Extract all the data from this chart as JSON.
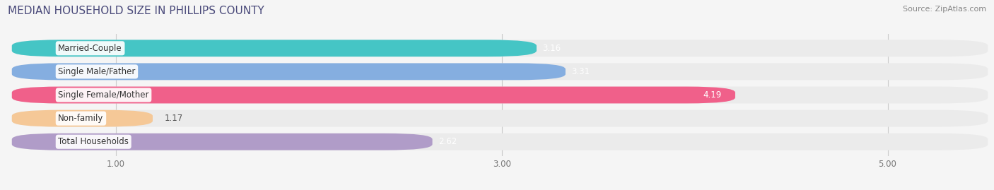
{
  "title": "MEDIAN HOUSEHOLD SIZE IN PHILLIPS COUNTY",
  "source": "Source: ZipAtlas.com",
  "categories": [
    "Married-Couple",
    "Single Male/Father",
    "Single Female/Mother",
    "Non-family",
    "Total Households"
  ],
  "values": [
    3.16,
    3.31,
    4.19,
    1.17,
    2.62
  ],
  "colors": [
    "#45c5c5",
    "#85aee0",
    "#f0608a",
    "#f5c897",
    "#b09cc8"
  ],
  "xlim": [
    0.0,
    5.5
  ],
  "xmin": 1.0,
  "xticks": [
    1.0,
    3.0,
    5.0
  ],
  "xtick_labels": [
    "1.00",
    "3.00",
    "5.00"
  ],
  "bar_height": 0.68,
  "label_fontsize": 8.5,
  "value_fontsize": 8.5,
  "title_fontsize": 11,
  "source_fontsize": 8,
  "background_color": "#f5f5f5",
  "bar_bg_color": "#ebebeb",
  "title_color": "#4a4a7a",
  "source_color": "#888888"
}
